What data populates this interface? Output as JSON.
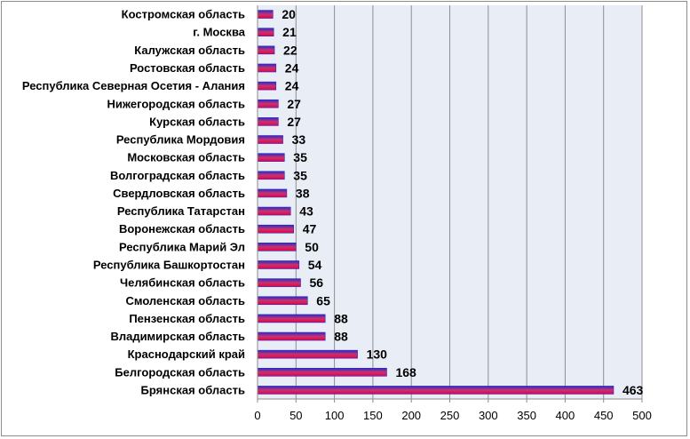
{
  "chart_data": {
    "type": "bar",
    "orientation": "horizontal",
    "categories": [
      "Костромская область",
      "г. Москва",
      "Калужская область",
      "Ростовская область",
      "Республика Северная Осетия - Алания",
      "Нижегородская область",
      "Курская область",
      "Республика Мордовия",
      "Московская область",
      "Волгоградская область",
      "Свердловская область",
      "Республика Татарстан",
      "Воронежская область",
      "Республика Марий Эл",
      "Республика Башкортостан",
      "Челябинская область",
      "Смоленская область",
      "Пензенская область",
      "Владимирская область",
      "Краснодарский край",
      "Белгородская область",
      "Брянская область"
    ],
    "values": [
      20,
      21,
      22,
      24,
      24,
      27,
      27,
      33,
      35,
      35,
      38,
      43,
      47,
      50,
      54,
      56,
      65,
      88,
      88,
      130,
      168,
      463
    ],
    "xlim": [
      0,
      500
    ],
    "xticks": [
      0,
      50,
      100,
      150,
      200,
      250,
      300,
      350,
      400,
      450,
      500
    ],
    "title": "",
    "xlabel": "",
    "ylabel": "",
    "grid": "vertical",
    "legend": "none",
    "data_labels": true,
    "colors": {
      "plot_background": "#e9edf6",
      "grid": "#8f8f8f",
      "bar_top": "#2a2ac9",
      "bar_mid": "#c8326e",
      "bar_bottom": "#e5004a",
      "label": "#000000"
    }
  }
}
